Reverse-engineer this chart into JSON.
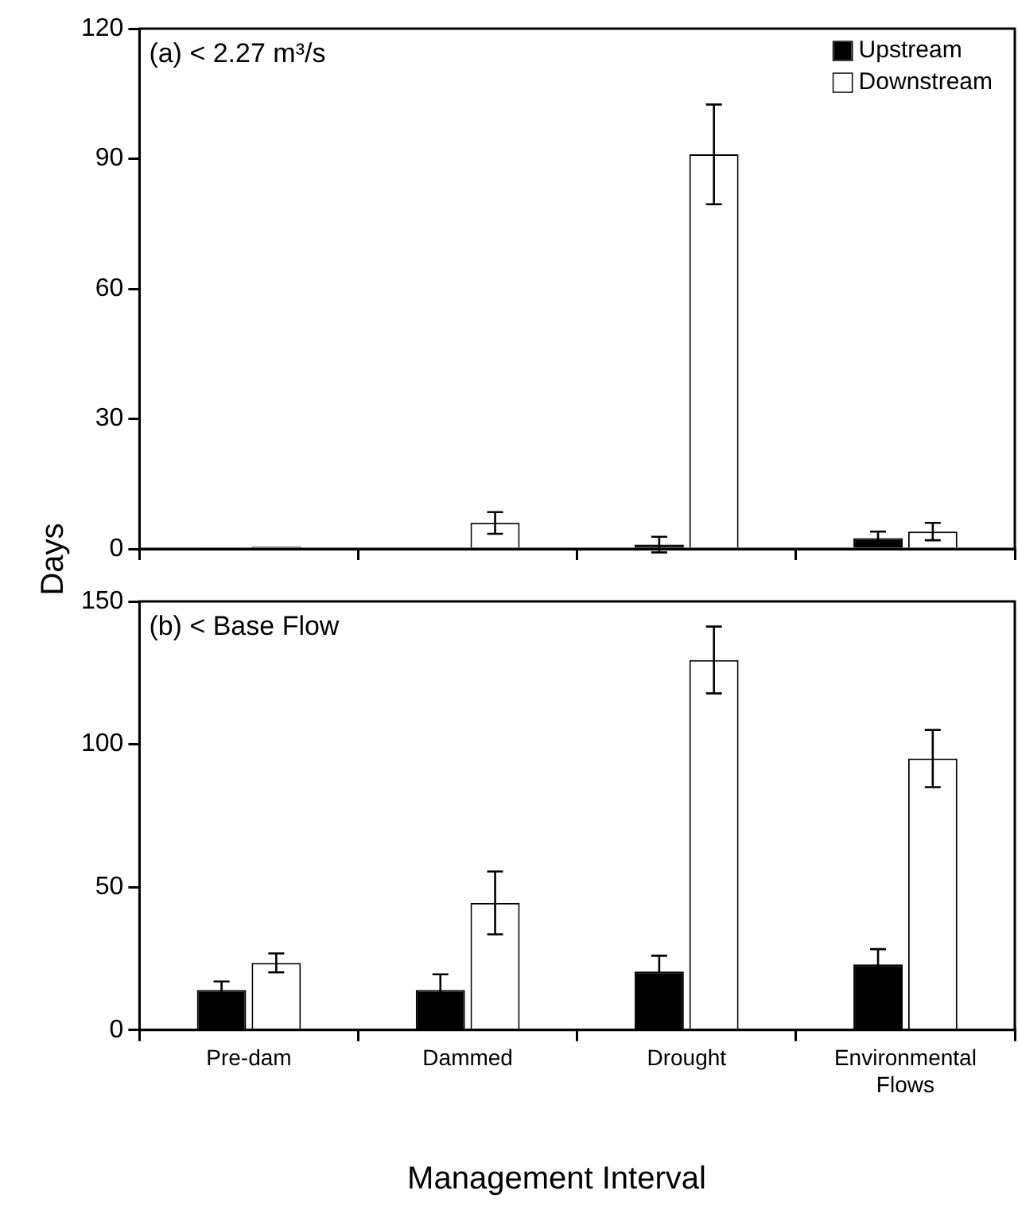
{
  "chart_data": [
    {
      "type": "bar",
      "categories": [
        null,
        null,
        null,
        null
      ],
      "series": [
        {
          "name": "Upstream",
          "color": "#000000",
          "values": [
            0.3,
            0,
            1,
            2.5
          ],
          "errors": [
            null,
            null,
            1.8,
            1.5
          ]
        },
        {
          "name": "Downstream",
          "color": "#ffffff",
          "values": [
            0.5,
            6,
            91,
            4
          ],
          "errors": [
            null,
            2.5,
            11.5,
            2
          ]
        }
      ],
      "ylim": [
        0,
        120
      ],
      "yticks": [
        0,
        30,
        60,
        90,
        120
      ],
      "grid": false,
      "legend": "top right",
      "tick_labels": "y",
      "annotations": [
        "(a) < 2.27 m³/s"
      ]
    },
    {
      "type": "bar",
      "categories": [
        "Pre-dam",
        "Dammed",
        "Drought",
        "Environmental Flows"
      ],
      "series": [
        {
          "color": "#000000",
          "values": [
            14,
            14,
            20.5,
            23
          ],
          "errors": [
            3,
            5.5,
            5.5,
            5.3
          ]
        },
        {
          "color": "#ffffff",
          "values": [
            23.5,
            44.5,
            129.5,
            95
          ],
          "errors": [
            3.3,
            11,
            11.7,
            10
          ]
        }
      ],
      "ylim": [
        0,
        150
      ],
      "yticks": [
        0,
        50,
        100,
        150
      ],
      "grid": false,
      "legend": false,
      "xlabel": "Management Interval",
      "ylabel": "Days",
      "annotations": [
        "(b) < Base Flow"
      ]
    }
  ]
}
